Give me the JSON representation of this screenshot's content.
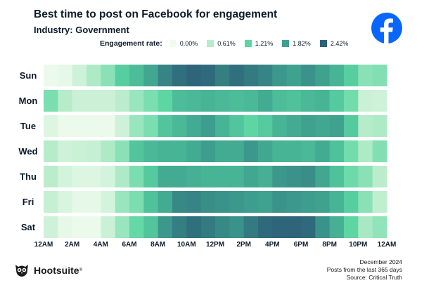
{
  "title": "Best time to post on Facebook for engagement",
  "subtitle": "Industry: Government",
  "legend": {
    "title": "Engagement rate:",
    "items": [
      {
        "label": "0.00%",
        "color": "#f0fbee"
      },
      {
        "label": "0.61%",
        "color": "#b6ecca"
      },
      {
        "label": "1.21%",
        "color": "#5bd6a3"
      },
      {
        "label": "1.82%",
        "color": "#3ea18f"
      },
      {
        "label": "2.42%",
        "color": "#2d6379"
      }
    ]
  },
  "footer": {
    "brand": "Hootsuite",
    "brand_mark": "®",
    "date": "December 2024",
    "note": "Posts from the last 365 days",
    "source": "Source: Critical Truth"
  },
  "chart_data": {
    "type": "heatmap",
    "title": "Best time to post on Facebook for engagement",
    "subtitle": "Industry: Government",
    "colorbar_label": "Engagement rate",
    "colorbar_unit": "%",
    "vmin": 0.0,
    "vmax": 2.42,
    "rows": [
      "Sun",
      "Mon",
      "Tue",
      "Wed",
      "Thu",
      "Fri",
      "Sat"
    ],
    "columns": [
      "12AM",
      "1AM",
      "2AM",
      "3AM",
      "4AM",
      "5AM",
      "6AM",
      "7AM",
      "8AM",
      "9AM",
      "10AM",
      "11AM",
      "12PM",
      "1PM",
      "2PM",
      "3PM",
      "4PM",
      "5PM",
      "6PM",
      "7PM",
      "8PM",
      "9PM",
      "10PM",
      "11PM"
    ],
    "xtick_labels": [
      "12AM",
      "2AM",
      "4AM",
      "6AM",
      "8AM",
      "10AM",
      "12PM",
      "2PM",
      "4PM",
      "6PM",
      "8PM",
      "10PM",
      "12AM"
    ],
    "values": [
      [
        0.05,
        0.1,
        0.35,
        0.65,
        0.9,
        1.3,
        1.5,
        1.75,
        2.1,
        2.3,
        2.4,
        2.35,
        2.15,
        2.3,
        2.2,
        2.1,
        1.9,
        1.8,
        1.95,
        1.8,
        1.6,
        1.3,
        0.9,
        0.95
      ],
      [
        1.0,
        0.6,
        0.4,
        0.4,
        0.4,
        0.55,
        0.8,
        1.0,
        1.2,
        1.5,
        1.55,
        1.6,
        1.55,
        1.5,
        1.55,
        1.7,
        1.5,
        1.45,
        1.55,
        1.6,
        1.35,
        1.05,
        0.4,
        0.35
      ],
      [
        0.2,
        0.05,
        0.05,
        0.05,
        0.05,
        0.35,
        0.8,
        1.0,
        1.4,
        1.55,
        1.7,
        1.85,
        1.6,
        1.4,
        1.2,
        1.35,
        1.6,
        1.7,
        1.8,
        1.75,
        1.8,
        1.35,
        0.6,
        0.65
      ],
      [
        0.6,
        0.35,
        0.4,
        0.45,
        0.65,
        0.9,
        1.4,
        1.55,
        1.6,
        1.6,
        1.7,
        1.85,
        1.7,
        1.7,
        1.9,
        1.75,
        1.6,
        1.6,
        1.55,
        1.7,
        1.45,
        1.05,
        0.65,
        0.95
      ],
      [
        0.55,
        0.3,
        0.2,
        0.2,
        0.3,
        0.65,
        1.0,
        1.35,
        1.7,
        1.7,
        1.65,
        1.6,
        1.6,
        1.6,
        1.75,
        1.65,
        1.9,
        1.95,
        2.0,
        1.75,
        1.45,
        1.1,
        0.9,
        0.55
      ],
      [
        0.45,
        0.25,
        0.1,
        0.1,
        0.3,
        0.8,
        1.0,
        1.45,
        1.7,
        2.05,
        2.1,
        2.0,
        1.95,
        1.9,
        1.85,
        1.8,
        1.95,
        1.9,
        1.85,
        1.8,
        1.6,
        1.3,
        0.9,
        0.5
      ],
      [
        0.35,
        0.1,
        0.05,
        0.05,
        0.4,
        0.8,
        1.15,
        1.4,
        1.9,
        2.15,
        2.3,
        2.2,
        2.05,
        1.95,
        2.2,
        2.35,
        2.4,
        2.4,
        2.35,
        1.95,
        1.65,
        1.2,
        0.7,
        0.85
      ]
    ]
  }
}
